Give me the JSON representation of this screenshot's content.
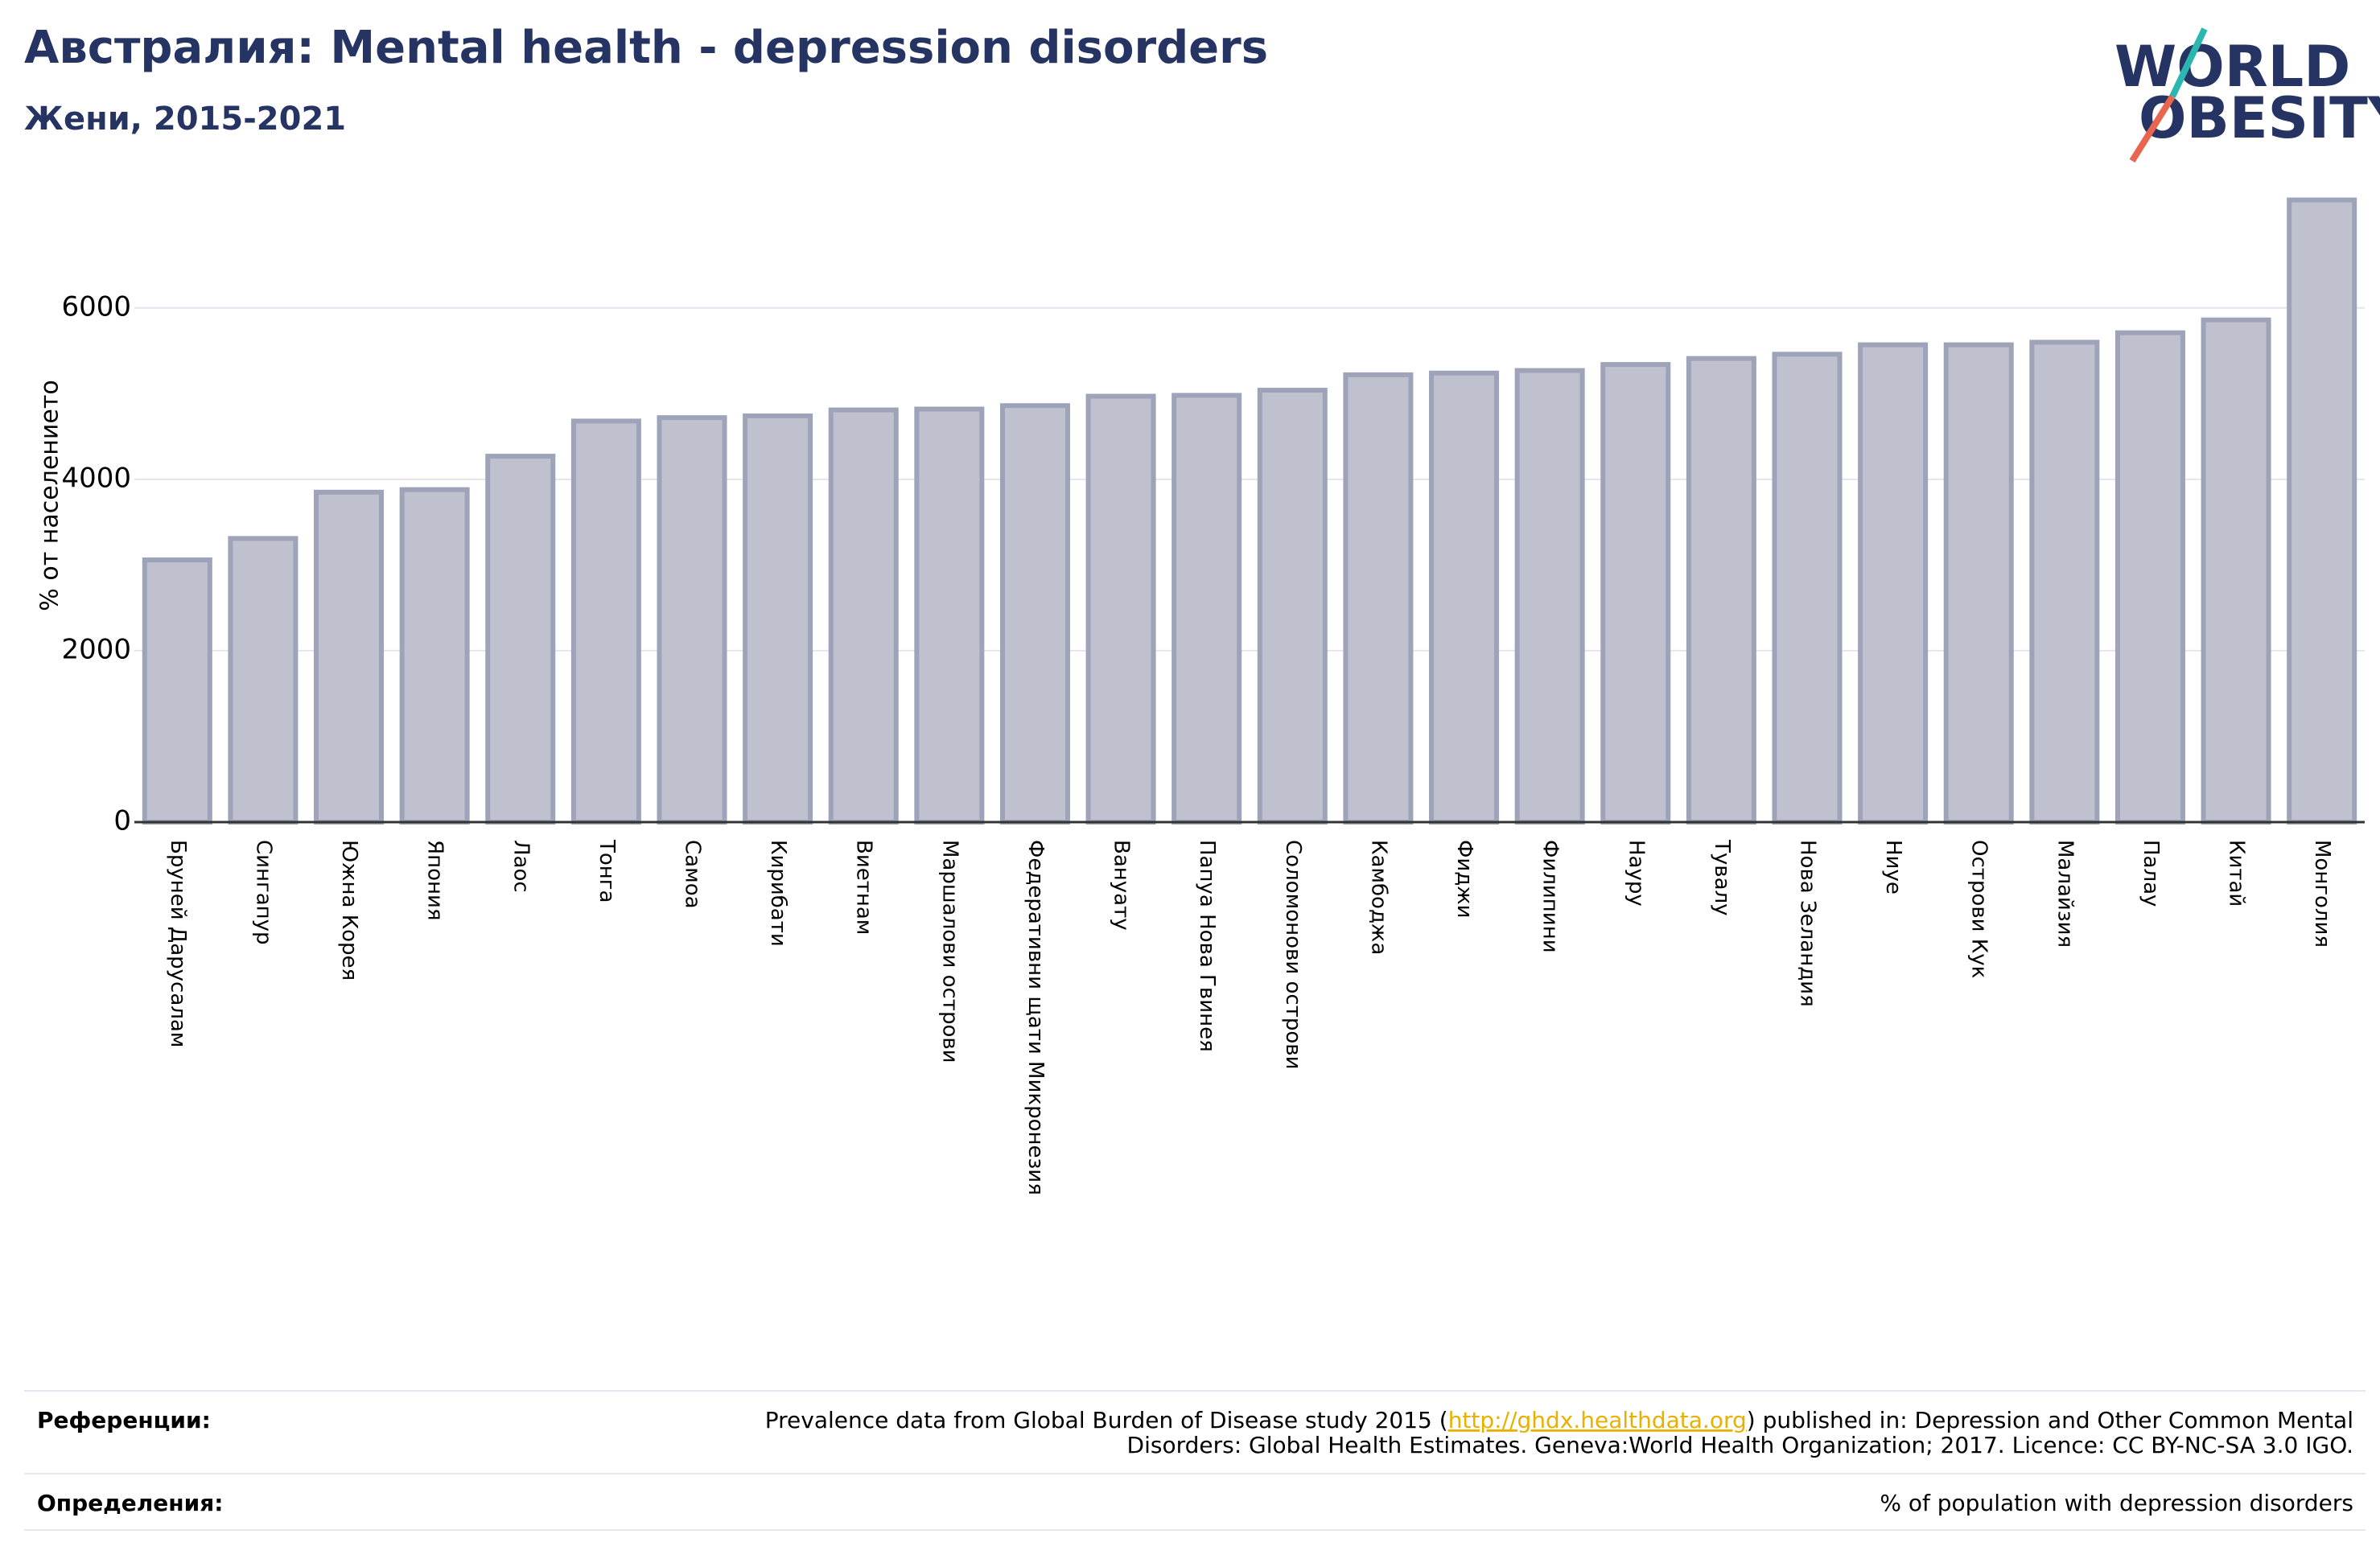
{
  "chart_data": {
    "type": "bar",
    "title": "Австралия: Mental health - depression disorders",
    "subtitle": "Жени, 2015-2021",
    "y_label": "% от населението",
    "categories": [
      "Бруней Дарусалам",
      "Сингапур",
      "Южна Корея",
      "Япония",
      "Лаос",
      "Тонга",
      "Самоа",
      "Кирибати",
      "Виетнам",
      "Маршалови острови",
      "Федеративни щати Микронезия",
      "Вануату",
      "Папуа Нова Гвинея",
      "Соломонови острови",
      "Камбоджа",
      "Фиджи",
      "Филипини",
      "Науру",
      "Тувалу",
      "Нова Зеландия",
      "Ниуе",
      "Острови Кук",
      "Малайзия",
      "Палау",
      "Китай",
      "Монголия"
    ],
    "values": [
      3060,
      3310,
      3850,
      3880,
      4270,
      4680,
      4720,
      4740,
      4810,
      4820,
      4860,
      4970,
      4980,
      5040,
      5220,
      5240,
      5270,
      5340,
      5410,
      5460,
      5570,
      5570,
      5600,
      5710,
      5860,
      7260
    ],
    "color": "#bfc1cf",
    "edge_color": "#9ea3ba",
    "ylim": [
      0,
      7500
    ],
    "yticks": [
      0,
      2000,
      4000,
      6000
    ],
    "grid": true
  },
  "logo": {
    "line1": "WORLD",
    "line2": "OBESITY"
  },
  "footer": {
    "references_label": "Референции:",
    "references_before": "Prevalence data from Global Burden of Disease study 2015 (",
    "references_link": "http://ghdx.healthdata.org",
    "references_after": ") published in: Depression and Other Common Mental",
    "references_line2": "Disorders: Global Health Estimates. Geneva:World Health Organization; 2017. Licence: CC BY-NC-SA 3.0 IGO.",
    "definitions_label": "Определения:",
    "definitions_text": "% of population with depression disorders"
  }
}
